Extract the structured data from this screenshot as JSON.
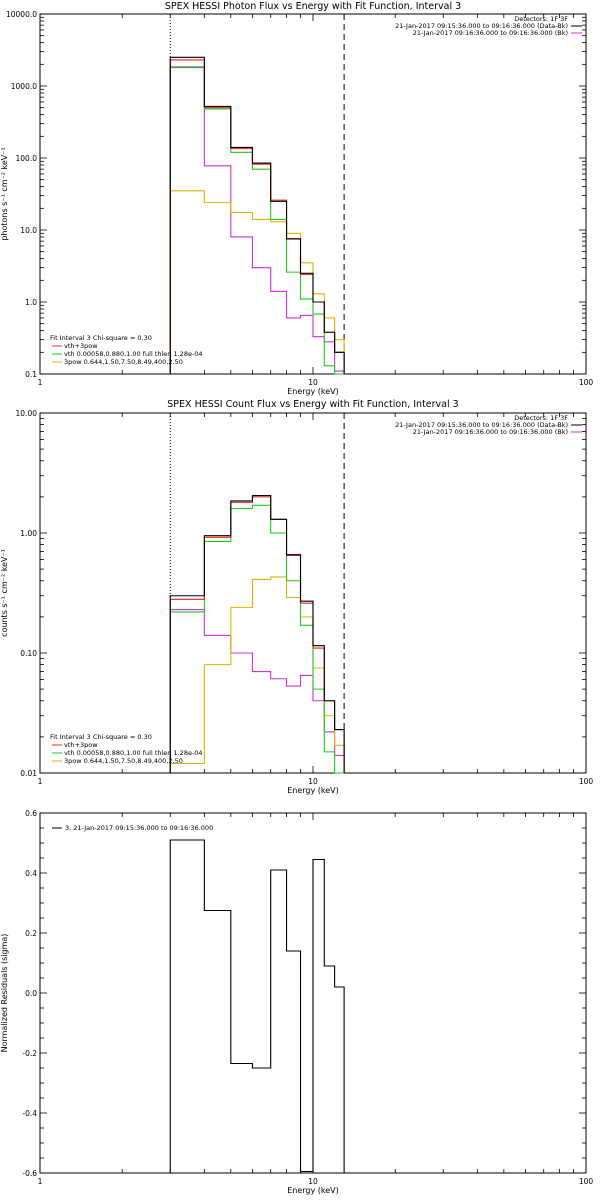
{
  "chart_data": [
    {
      "type": "line",
      "title": "SPEX HESSI Photon Flux vs Energy with Fit Function, Interval 3",
      "xlabel": "Energy (keV)",
      "ylabel": "photons s⁻¹ cm⁻² keV⁻¹",
      "xlim": [
        1,
        100
      ],
      "ylim": [
        0.1,
        10000
      ],
      "xlog": true,
      "ylog": true,
      "x_ticks": [
        "1",
        "10",
        "100"
      ],
      "y_ticks": [
        "0.1",
        "1.0",
        "10.0",
        "100.0",
        "1000.0",
        "10000.0"
      ],
      "vlines": [
        {
          "x": 3.0,
          "style": "dotted"
        },
        {
          "x": 13.0,
          "style": "dashed"
        }
      ],
      "bin_edges": [
        3.0,
        4.0,
        5.0,
        6.0,
        7.0,
        8.0,
        9.0,
        10.0,
        11.0,
        12.0,
        13.0
      ],
      "header": [
        {
          "text": "Detectors: 1F 3F",
          "color": ""
        },
        {
          "text": "21-Jan-2017 09:15:36.000 to 09:16:36.000 (Data-Bk)",
          "color": "#000000"
        },
        {
          "text": "21-Jan-2017 09:16:36.000 to 09:16:36.000 (Bk)",
          "color": "#cc33cc"
        }
      ],
      "fit_text": "Fit Interval 3   Chi-square = 0.30",
      "legend": [
        {
          "text": "vth+3pow",
          "color": "#e0281e"
        },
        {
          "text": "vth 0.00058,0.880,1.00  full thlen 1.28e-04",
          "color": "#1ec81e"
        },
        {
          "text": "3pow 0.644,1.50,7.50,8.49,400,2.50",
          "color": "#e0b400"
        }
      ],
      "series": [
        {
          "color": "#000000",
          "values": [
            2500,
            520,
            140,
            85,
            25,
            7.5,
            2.5,
            1.0,
            0.38,
            0.2
          ]
        },
        {
          "color": "#e0281e",
          "values": [
            2300,
            500,
            135,
            82,
            26,
            7.6,
            2.4,
            1.0,
            0.38,
            0.2
          ]
        },
        {
          "color": "#1ec81e",
          "values": [
            1850,
            480,
            120,
            70,
            14,
            2.6,
            1.1,
            0.68,
            0.13,
            0.08
          ]
        },
        {
          "color": "#e0b400",
          "values": [
            35,
            24,
            17.5,
            14,
            13,
            9,
            3.5,
            1.3,
            0.6,
            0.3
          ]
        },
        {
          "color": "#cc33cc",
          "values": [
            1800,
            78,
            8.0,
            3.0,
            1.4,
            0.6,
            0.65,
            0.33,
            0.28,
            0.11
          ]
        }
      ]
    },
    {
      "type": "line",
      "title": "SPEX HESSI Count Flux vs Energy with Fit Function, Interval 3",
      "xlabel": "Energy (keV)",
      "ylabel": "counts s⁻¹ cm⁻² keV⁻¹",
      "xlim": [
        1,
        100
      ],
      "ylim": [
        0.01,
        10
      ],
      "xlog": true,
      "ylog": true,
      "x_ticks": [
        "1",
        "10",
        "100"
      ],
      "y_ticks": [
        "0.01",
        "0.10",
        "1.00",
        "10.00"
      ],
      "vlines": [
        {
          "x": 3.0,
          "style": "dotted"
        },
        {
          "x": 13.0,
          "style": "dashed"
        }
      ],
      "bin_edges": [
        3.0,
        4.0,
        5.0,
        6.0,
        7.0,
        8.0,
        9.0,
        10.0,
        11.0,
        12.0,
        13.0
      ],
      "header": [
        {
          "text": "Detectors: 1F 3F",
          "color": ""
        },
        {
          "text": "21-Jan-2017 09:15:36.000 to 09:16:36.000 (Data-Bk)",
          "color": "#000000"
        },
        {
          "text": "21-Jan-2017 09:16:36.000 to 09:16:36.000 (Bk)",
          "color": "#cc33cc"
        }
      ],
      "fit_text": "Fit Interval 3   Chi-square = 0.30",
      "legend": [
        {
          "text": "vth+3pow",
          "color": "#e0281e"
        },
        {
          "text": "vth 0.00058,0.880,1.00  full thlen 1.28e-04",
          "color": "#1ec81e"
        },
        {
          "text": "3pow 0.644,1.50,7.50,8.49,400,2.50",
          "color": "#e0b400"
        }
      ],
      "series": [
        {
          "color": "#000000",
          "values": [
            0.3,
            0.95,
            1.85,
            2.05,
            1.3,
            0.66,
            0.27,
            0.115,
            0.04,
            0.023
          ]
        },
        {
          "color": "#e0281e",
          "values": [
            0.28,
            0.92,
            1.8,
            2.0,
            1.3,
            0.65,
            0.26,
            0.11,
            0.04,
            0.023
          ]
        },
        {
          "color": "#1ec81e",
          "values": [
            0.22,
            0.85,
            1.6,
            1.7,
            1.0,
            0.4,
            0.17,
            0.05,
            0.015,
            0.01
          ]
        },
        {
          "color": "#e0b400",
          "values": [
            0.012,
            0.08,
            0.24,
            0.41,
            0.43,
            0.29,
            0.2,
            0.075,
            0.03,
            0.017
          ]
        },
        {
          "color": "#cc33cc",
          "values": [
            0.23,
            0.14,
            0.1,
            0.07,
            0.061,
            0.053,
            0.065,
            0.04,
            0.022,
            0.014
          ]
        }
      ]
    },
    {
      "type": "line",
      "title": "",
      "xlabel": "Energy (keV)",
      "ylabel": "Normalized Residuals (sigma)",
      "xlim": [
        1,
        100
      ],
      "ylim": [
        -0.6,
        0.6
      ],
      "xlog": true,
      "ylog": false,
      "x_ticks": [
        "1",
        "10",
        "100"
      ],
      "y_ticks": [
        "-0.6",
        "-0.4",
        "-0.2",
        "0.0",
        "0.2",
        "0.4",
        "0.6"
      ],
      "bin_edges": [
        3.0,
        4.0,
        5.0,
        6.0,
        7.0,
        8.0,
        9.0,
        10.0,
        11.0,
        12.0,
        13.0
      ],
      "legend": [
        {
          "text": "3, 21-Jan-2017 09:15:36.000 to 09:16:36.000",
          "color": "#000000"
        }
      ],
      "series": [
        {
          "color": "#000000",
          "values": [
            0.51,
            0.275,
            -0.235,
            -0.25,
            0.41,
            0.14,
            -0.595,
            0.445,
            0.09,
            0.02
          ]
        }
      ]
    }
  ]
}
